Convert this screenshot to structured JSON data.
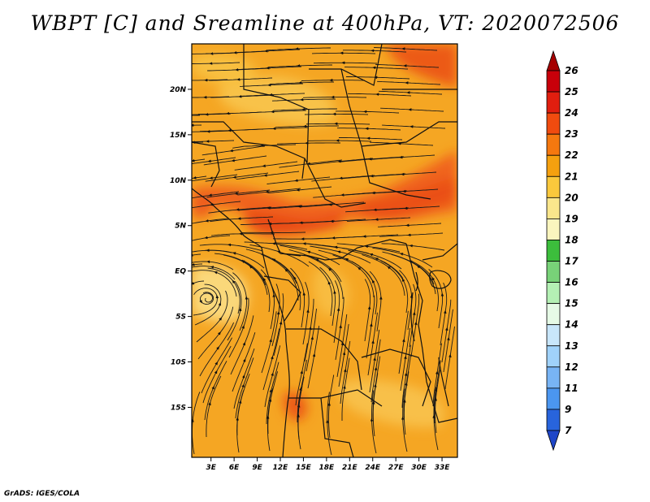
{
  "title": "WBPT [C] and Sreamline at 400hPa, VT: 2020072506",
  "credit": "GrADS: IGES/COLA",
  "map": {
    "lat_labels": [
      {
        "label": "20N",
        "lat": 20
      },
      {
        "label": "15N",
        "lat": 15
      },
      {
        "label": "10N",
        "lat": 10
      },
      {
        "label": "5N",
        "lat": 5
      },
      {
        "label": "EQ",
        "lat": 0
      },
      {
        "label": "5S",
        "lat": -5
      },
      {
        "label": "10S",
        "lat": -10
      },
      {
        "label": "15S",
        "lat": -15
      }
    ],
    "lon_labels": [
      {
        "label": "3E",
        "lon": 3
      },
      {
        "label": "6E",
        "lon": 6
      },
      {
        "label": "9E",
        "lon": 9
      },
      {
        "label": "12E",
        "lon": 12
      },
      {
        "label": "15E",
        "lon": 15
      },
      {
        "label": "18E",
        "lon": 18
      },
      {
        "label": "21E",
        "lon": 21
      },
      {
        "label": "24E",
        "lon": 24
      },
      {
        "label": "27E",
        "lon": 27
      },
      {
        "label": "30E",
        "lon": 30
      },
      {
        "label": "33E",
        "lon": 33
      }
    ],
    "lon_range": [
      0.5,
      35
    ],
    "lat_range": [
      -20.5,
      25
    ],
    "base_color": "#f5a623"
  },
  "colorbar": {
    "levels": [
      "26",
      "25",
      "24",
      "23",
      "22",
      "21",
      "20",
      "19",
      "18",
      "17",
      "16",
      "15",
      "14",
      "13",
      "12",
      "11",
      "9",
      "7"
    ],
    "colors": [
      "#a50000",
      "#c8000a",
      "#e11e0f",
      "#f04b0f",
      "#f5780f",
      "#f5a00f",
      "#fac83c",
      "#fae68c",
      "#faf5be",
      "#3cbe3c",
      "#78d278",
      "#b4f0b4",
      "#e6fae6",
      "#c8e6fa",
      "#a0d2fa",
      "#78b4f5",
      "#4b96f0",
      "#2864dc",
      "#1e46c8"
    ]
  }
}
